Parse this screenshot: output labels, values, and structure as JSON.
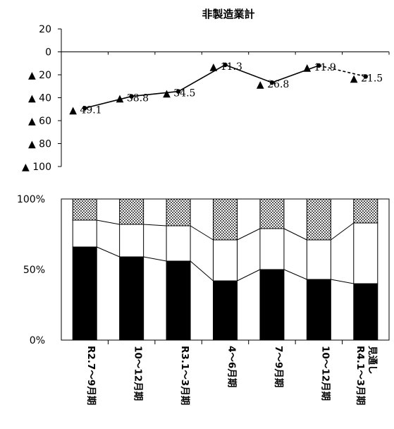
{
  "chart_data": [
    {
      "type": "line",
      "title": "非製造業計",
      "y_tick_labels": [
        "20",
        "0",
        "▲ 20",
        "▲ 40",
        "▲ 60",
        "▲ 80",
        "▲ 100"
      ],
      "y_tick_values": [
        20,
        0,
        -20,
        -40,
        -60,
        -80,
        -100
      ],
      "ylim": [
        -100,
        20
      ],
      "x": [
        "R2.7～9月期",
        "10～12月期",
        "R3.1～3月期",
        "4～6月期",
        "7～9月期",
        "10～12月期",
        "R4.1～3月期 見通し"
      ],
      "values": [
        -49.1,
        -38.8,
        -34.5,
        -11.3,
        -26.8,
        -11.9,
        -21.5
      ],
      "data_labels": [
        "▲ 49.1",
        "▲ 38.8",
        "▲ 34.5",
        "▲ 11.3",
        "▲ 26.8",
        "▲ 11.9",
        "▲ 21.5"
      ],
      "last_segment_style": "dashed",
      "grid": false
    },
    {
      "type": "bar",
      "stacked": true,
      "percent": true,
      "y_tick_labels": [
        "100%",
        "50%",
        "0%"
      ],
      "ylim": [
        0,
        100
      ],
      "categories": [
        "R2.7～9月期",
        "10～12月期",
        "R3.1～3月期",
        "4～6月期",
        "7～9月期",
        "10～12月期",
        "R4.1～3月期 見通し"
      ],
      "category_lines": [
        [
          "R2.7～9月期"
        ],
        [
          "10～12月期"
        ],
        [
          "R3.1～3月期"
        ],
        [
          "4～6月期"
        ],
        [
          "7～9月期"
        ],
        [
          "10～12月期"
        ],
        [
          "R4.1～3月期",
          "見通し"
        ]
      ],
      "series": [
        {
          "fill": "#000000",
          "values": [
            66,
            59,
            56,
            42,
            50,
            43,
            40
          ]
        },
        {
          "fill": "#ffffff",
          "values": [
            19,
            23,
            25,
            29,
            29,
            28,
            43
          ]
        },
        {
          "fill": "checker",
          "values": [
            15,
            18,
            19,
            29,
            21,
            29,
            17
          ]
        }
      ],
      "series_lines": true,
      "grid": false
    }
  ]
}
